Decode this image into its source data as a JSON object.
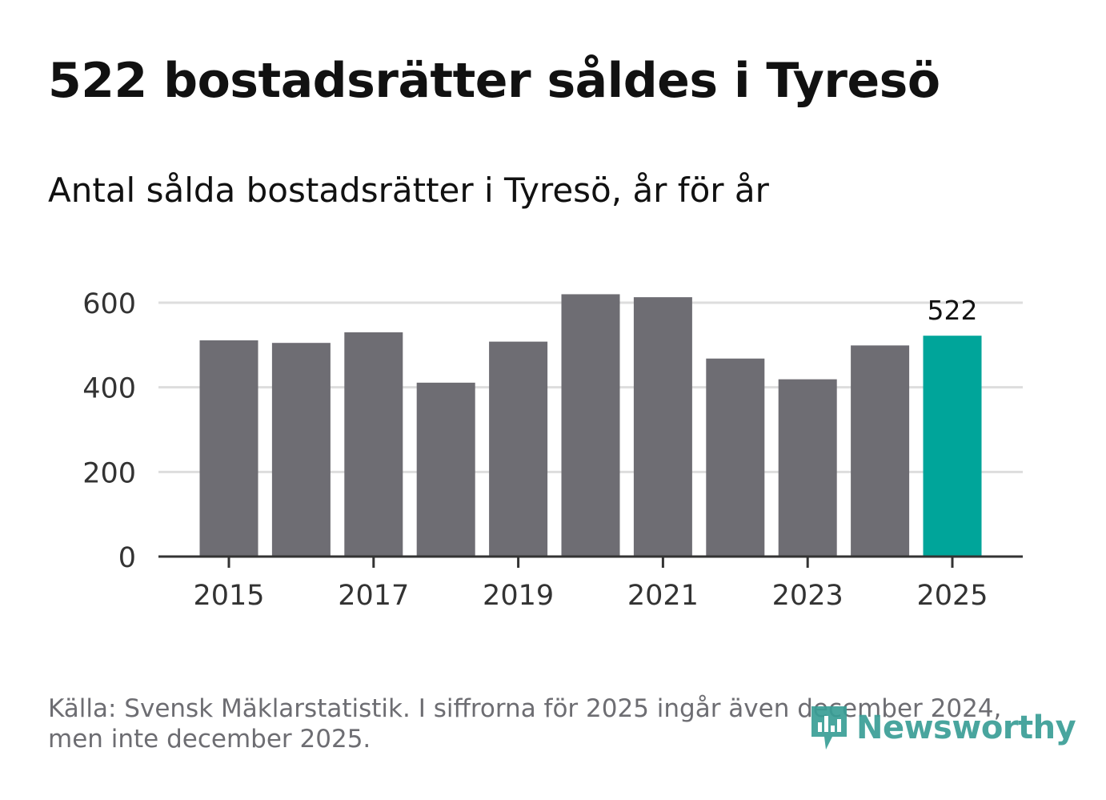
{
  "title": "522 bostadsrätter såldes i Tyresö",
  "subtitle": "Antal sålda bostadsrätter i Tyresö, år för år",
  "footer": {
    "line1": "Källa: Svensk Mäklarstatistik. I siffrorna för 2025 ingår även december 2024,",
    "line2": "men inte december 2025."
  },
  "logo": {
    "text": "Newsworthy",
    "icon": "newsworthy-logo-icon",
    "color": "#3a9e96"
  },
  "colors": {
    "bar": "#6e6d73",
    "highlight": "#00a59a",
    "grid": "#dddddd",
    "axis": "#333333",
    "tick_text": "#333333"
  },
  "chart_data": {
    "type": "bar",
    "title": "Antal sålda bostadsrätter i Tyresö, år för år",
    "xlabel": "",
    "ylabel": "",
    "categories": [
      "2015",
      "2016",
      "2017",
      "2018",
      "2019",
      "2020",
      "2021",
      "2022",
      "2023",
      "2024",
      "2025"
    ],
    "values": [
      511,
      505,
      530,
      411,
      508,
      620,
      613,
      468,
      419,
      499,
      522
    ],
    "highlight_index": 10,
    "highlight_label": "522",
    "ylim": [
      0,
      700
    ],
    "yticks": [
      0,
      200,
      400,
      600
    ],
    "xtick_labels": [
      "2015",
      "2017",
      "2019",
      "2021",
      "2023",
      "2025"
    ],
    "grid": true,
    "legend": "none"
  }
}
